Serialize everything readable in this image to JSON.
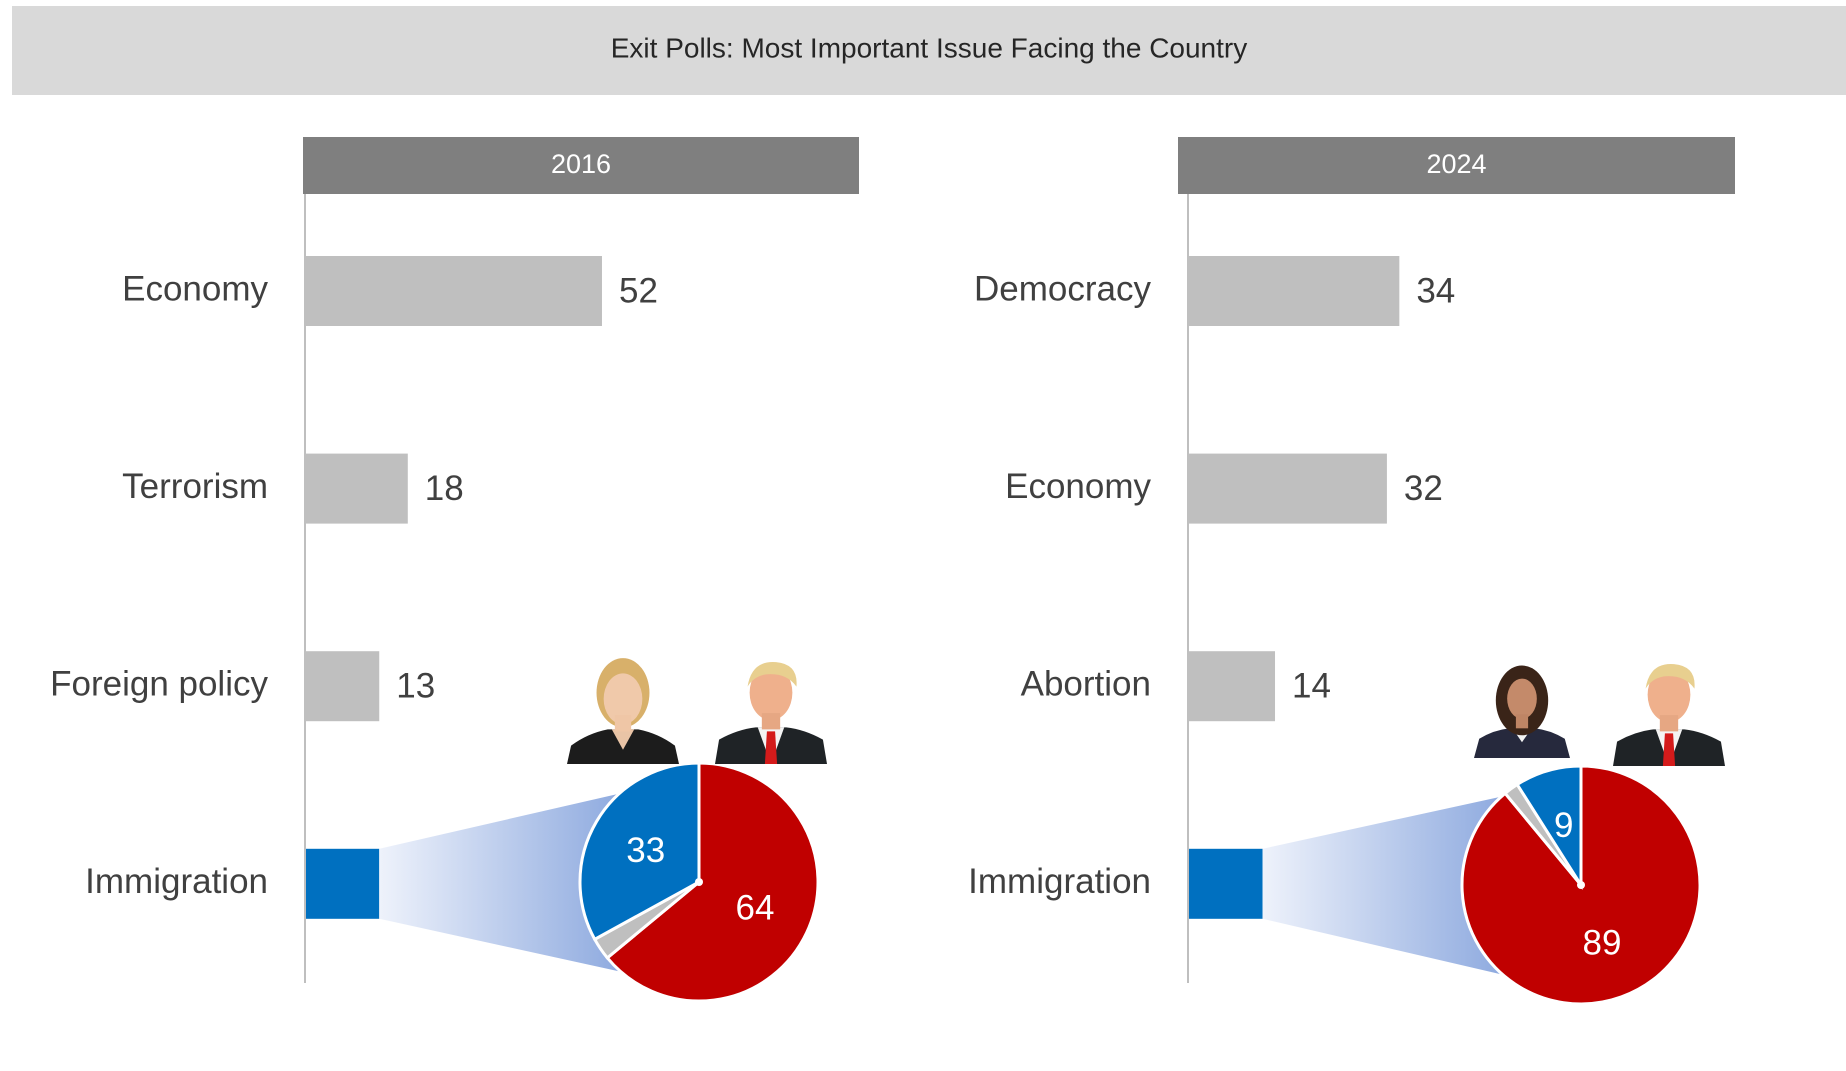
{
  "title": "Exit Polls: Most Important Issue Facing the Country",
  "chart_data": [
    {
      "type": "bar",
      "title": "2016",
      "categories": [
        "Economy",
        "Terrorism",
        "Foreign policy",
        "Immigration"
      ],
      "values": [
        52,
        18,
        13,
        13
      ],
      "colors": [
        "#bfbfbf",
        "#bfbfbf",
        "#bfbfbf",
        "#0070c0"
      ],
      "xlim": [
        0,
        97
      ]
    },
    {
      "type": "pie",
      "values": [
        64,
        3,
        33
      ],
      "colors": [
        "#c00000",
        "#bfbfbf",
        "#0070c0"
      ],
      "data_labels": [
        true,
        false,
        true
      ]
    },
    {
      "type": "bar",
      "title": "2024",
      "categories": [
        "Democracy",
        "Economy",
        "Abortion",
        "Immigration"
      ],
      "values": [
        34,
        32,
        14,
        12
      ],
      "colors": [
        "#bfbfbf",
        "#bfbfbf",
        "#bfbfbf",
        "#0070c0"
      ],
      "xlim": [
        0,
        88
      ]
    },
    {
      "type": "pie",
      "values": [
        89,
        2,
        9
      ],
      "colors": [
        "#c00000",
        "#bfbfbf",
        "#0070c0"
      ],
      "data_labels": [
        true,
        false,
        true
      ]
    }
  ]
}
